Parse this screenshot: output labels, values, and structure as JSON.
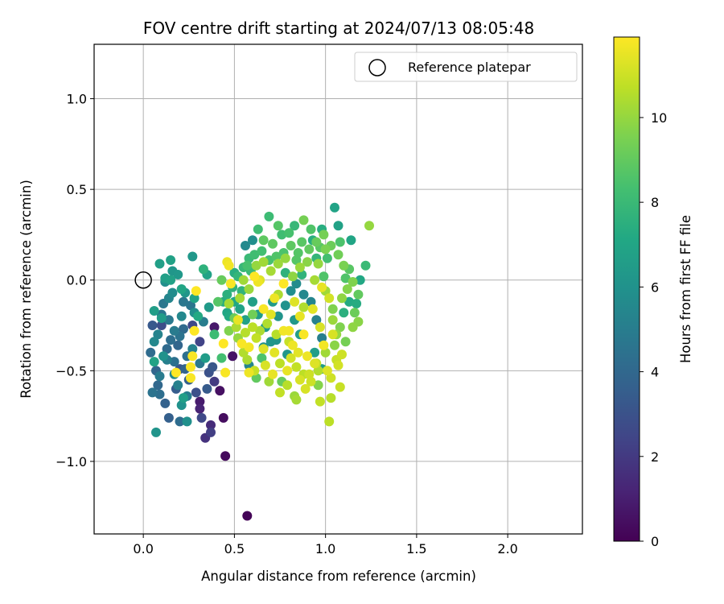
{
  "chart_data": {
    "type": "scatter",
    "title": "FOV centre drift starting at 2024/07/13 08:05:48",
    "xlabel": "Angular distance from reference (arcmin)",
    "ylabel": "Rotation from reference (arcmin)",
    "xlim": [
      -0.27,
      2.41
    ],
    "ylim": [
      -1.4,
      1.3
    ],
    "xticks": [
      0.0,
      0.5,
      1.0,
      1.5,
      2.0
    ],
    "yticks": [
      -1.0,
      -0.5,
      0.0,
      0.5,
      1.0
    ],
    "xtick_labels": [
      "0.0",
      "0.5",
      "1.0",
      "1.5",
      "2.0"
    ],
    "ytick_labels": [
      "−1.0",
      "−0.5",
      "0.0",
      "0.5",
      "1.0"
    ],
    "grid": true,
    "legend": {
      "position": "top-right",
      "entries": [
        {
          "label": "Reference platepar",
          "marker": "open-circle"
        }
      ]
    },
    "reference_point": {
      "x": 0.0,
      "y": 0.0
    },
    "colorbar": {
      "label": "Hours from first FF file",
      "colormap": "viridis",
      "range": [
        0,
        11.9
      ],
      "ticks": [
        0,
        2,
        4,
        6,
        8,
        10
      ],
      "tick_labels": [
        "0",
        "2",
        "4",
        "6",
        "8",
        "10"
      ]
    },
    "points_columns": [
      "x",
      "y",
      "hours"
    ],
    "points": [
      [
        0.57,
        -1.3,
        0.1
      ],
      [
        0.45,
        -0.97,
        0.3
      ],
      [
        0.44,
        -0.76,
        0.4
      ],
      [
        0.42,
        -0.61,
        0.5
      ],
      [
        0.49,
        -0.42,
        0.6
      ],
      [
        0.39,
        -0.26,
        0.8
      ],
      [
        0.31,
        -0.67,
        0.9
      ],
      [
        0.31,
        -0.71,
        1.2
      ],
      [
        0.37,
        -0.8,
        1.5
      ],
      [
        0.34,
        -0.87,
        1.7
      ],
      [
        0.39,
        -0.56,
        2.0
      ],
      [
        0.37,
        -0.84,
        2.2
      ],
      [
        0.31,
        -0.34,
        2.4
      ],
      [
        0.27,
        -0.25,
        2.6
      ],
      [
        0.1,
        -0.25,
        2.8
      ],
      [
        0.36,
        -0.51,
        3.0
      ],
      [
        0.2,
        -0.49,
        3.1
      ],
      [
        0.05,
        -0.25,
        3.3
      ],
      [
        0.18,
        -0.6,
        3.5
      ],
      [
        0.14,
        -0.76,
        3.6
      ],
      [
        0.23,
        -0.49,
        3.8
      ],
      [
        0.07,
        -0.5,
        3.9
      ],
      [
        0.13,
        -0.38,
        4.1
      ],
      [
        0.2,
        -0.78,
        4.2
      ],
      [
        0.09,
        -0.63,
        4.3
      ],
      [
        0.17,
        -0.45,
        4.4
      ],
      [
        0.05,
        -0.62,
        4.5
      ],
      [
        0.2,
        -0.31,
        4.5
      ],
      [
        0.1,
        -0.19,
        4.6
      ],
      [
        0.22,
        -0.12,
        4.7
      ],
      [
        0.14,
        -0.22,
        4.8
      ],
      [
        0.09,
        -0.53,
        4.9
      ],
      [
        0.17,
        -0.28,
        4.9
      ],
      [
        0.24,
        -0.64,
        5.0
      ],
      [
        0.13,
        -0.44,
        5.1
      ],
      [
        0.19,
        -0.58,
        5.2
      ],
      [
        0.08,
        -0.3,
        5.3
      ],
      [
        0.27,
        -0.38,
        5.3
      ],
      [
        0.14,
        -0.1,
        5.4
      ],
      [
        0.21,
        -0.2,
        5.5
      ],
      [
        0.06,
        -0.34,
        5.5
      ],
      [
        0.17,
        -0.52,
        5.6
      ],
      [
        0.16,
        -0.07,
        5.7
      ],
      [
        0.28,
        -0.18,
        5.8
      ],
      [
        0.12,
        -0.01,
        5.8
      ],
      [
        0.24,
        -0.78,
        5.9
      ],
      [
        0.21,
        -0.69,
        6.0
      ],
      [
        0.11,
        -0.42,
        6.0
      ],
      [
        0.07,
        -0.84,
        6.1
      ],
      [
        0.23,
        -0.07,
        6.2
      ],
      [
        0.16,
        0.05,
        6.2
      ],
      [
        0.19,
        0.03,
        6.3
      ],
      [
        0.27,
        0.13,
        6.3
      ],
      [
        0.36,
        -0.15,
        6.4
      ],
      [
        0.34,
        -0.43,
        6.5
      ],
      [
        0.1,
        -0.21,
        6.5
      ],
      [
        0.06,
        -0.17,
        6.6
      ],
      [
        0.22,
        -0.65,
        6.6
      ],
      [
        0.12,
        0.01,
        6.7
      ],
      [
        0.09,
        0.09,
        6.7
      ],
      [
        0.15,
        0.11,
        6.8
      ],
      [
        0.15,
        0.0,
        6.8
      ],
      [
        0.06,
        -0.45,
        6.9
      ],
      [
        0.35,
        0.03,
        6.9
      ],
      [
        0.21,
        -0.05,
        7.0
      ],
      [
        0.58,
        -0.47,
        5.4
      ],
      [
        0.56,
        0.19,
        5.6
      ],
      [
        0.6,
        0.22,
        5.8
      ],
      [
        0.66,
        -0.37,
        5.9
      ],
      [
        0.73,
        -0.33,
        6.1
      ],
      [
        0.79,
        -0.41,
        6.2
      ],
      [
        0.83,
        -0.22,
        6.3
      ],
      [
        0.71,
        -0.12,
        6.4
      ],
      [
        0.98,
        -0.49,
        6.5
      ],
      [
        0.94,
        -0.4,
        6.6
      ],
      [
        0.86,
        -0.3,
        6.7
      ],
      [
        1.07,
        0.3,
        6.8
      ],
      [
        1.05,
        0.4,
        6.9
      ],
      [
        1.14,
        0.22,
        7.0
      ],
      [
        1.19,
        0.0,
        7.1
      ],
      [
        1.13,
        -0.12,
        7.2
      ],
      [
        1.17,
        -0.13,
        7.3
      ],
      [
        0.93,
        0.22,
        7.4
      ],
      [
        0.98,
        0.28,
        7.4
      ],
      [
        1.1,
        -0.18,
        7.5
      ],
      [
        0.78,
        0.04,
        7.6
      ],
      [
        0.87,
        0.03,
        7.7
      ],
      [
        0.95,
        0.12,
        7.8
      ],
      [
        0.83,
        0.3,
        7.9
      ],
      [
        1.22,
        0.08,
        8.0
      ],
      [
        0.69,
        0.35,
        8.1
      ],
      [
        0.76,
        0.25,
        8.2
      ],
      [
        0.43,
        -0.43,
        8.3
      ],
      [
        0.57,
        0.08,
        8.4
      ],
      [
        0.65,
        -0.43,
        8.5
      ],
      [
        1.11,
        0.01,
        8.6
      ],
      [
        0.99,
        0.02,
        8.6
      ],
      [
        0.84,
        0.11,
        8.7
      ],
      [
        0.97,
        0.18,
        8.8
      ],
      [
        0.71,
        0.2,
        8.9
      ],
      [
        0.62,
        -0.54,
        9.0
      ],
      [
        0.76,
        -0.56,
        9.1
      ],
      [
        0.5,
        -0.21,
        9.2
      ],
      [
        0.6,
        -0.19,
        9.3
      ],
      [
        0.88,
        0.33,
        9.4
      ],
      [
        1.0,
        0.17,
        9.5
      ],
      [
        1.04,
        -0.16,
        9.6
      ],
      [
        0.96,
        -0.58,
        9.7
      ],
      [
        1.18,
        -0.23,
        9.8
      ],
      [
        1.15,
        -0.26,
        9.9
      ],
      [
        1.24,
        0.3,
        10.0
      ],
      [
        0.83,
        -0.64,
        10.1
      ],
      [
        0.69,
        -0.56,
        10.2
      ],
      [
        0.47,
        -0.13,
        10.3
      ],
      [
        0.74,
        -0.08,
        10.4
      ],
      [
        0.88,
        -0.15,
        10.5
      ],
      [
        1.03,
        -0.65,
        10.6
      ],
      [
        1.02,
        -0.78,
        10.7
      ],
      [
        0.97,
        -0.67,
        10.8
      ],
      [
        1.08,
        -0.59,
        10.9
      ],
      [
        1.09,
        -0.41,
        11.0
      ],
      [
        0.81,
        -0.43,
        11.1
      ],
      [
        0.86,
        -0.55,
        11.2
      ],
      [
        0.64,
        0.0,
        11.3
      ],
      [
        0.72,
        -0.4,
        11.4
      ],
      [
        0.46,
        0.1,
        11.6
      ],
      [
        0.77,
        -0.28,
        11.7
      ],
      [
        0.26,
        -0.54,
        11.8
      ],
      [
        0.29,
        -0.06,
        11.9
      ],
      [
        0.18,
        -0.51,
        11.9
      ],
      [
        0.27,
        -0.42,
        11.8
      ],
      [
        0.28,
        -0.28,
        11.9
      ],
      [
        0.44,
        -0.35,
        11.9
      ],
      [
        0.45,
        -0.51,
        11.8
      ],
      [
        0.26,
        -0.48,
        11.8
      ],
      [
        0.47,
        0.08,
        11.7
      ],
      [
        0.58,
        -0.51,
        11.6
      ],
      [
        0.48,
        -0.02,
        11.8
      ],
      [
        0.63,
        -0.01,
        11.6
      ],
      [
        0.61,
        0.02,
        11.9
      ],
      [
        0.54,
        -0.35,
        11.8
      ],
      [
        0.52,
        -0.22,
        11.5
      ],
      [
        0.58,
        -0.37,
        11.7
      ],
      [
        0.66,
        -0.16,
        11.8
      ],
      [
        0.72,
        -0.1,
        11.6
      ],
      [
        0.7,
        -0.19,
        11.4
      ],
      [
        0.66,
        -0.38,
        11.3
      ],
      [
        0.77,
        -0.02,
        11.9
      ],
      [
        0.8,
        -0.28,
        11.7
      ],
      [
        0.79,
        -0.5,
        11.5
      ],
      [
        0.82,
        -0.36,
        11.6
      ],
      [
        0.85,
        -0.4,
        11.4
      ],
      [
        0.83,
        -0.12,
        11.3
      ],
      [
        0.86,
        -0.2,
        11.5
      ],
      [
        0.88,
        -0.3,
        11.8
      ],
      [
        0.9,
        -0.42,
        11.6
      ],
      [
        0.93,
        -0.16,
        11.4
      ],
      [
        0.94,
        -0.46,
        11.3
      ],
      [
        0.97,
        -0.26,
        11.2
      ],
      [
        0.98,
        -0.04,
        11.5
      ],
      [
        0.99,
        -0.36,
        11.7
      ],
      [
        1.01,
        -0.5,
        11.3
      ],
      [
        1.02,
        -0.1,
        11.1
      ],
      [
        1.03,
        -0.54,
        11.0
      ],
      [
        1.04,
        -0.3,
        11.2
      ],
      [
        1.06,
        -0.44,
        10.9
      ],
      [
        1.07,
        -0.47,
        11.1
      ],
      [
        0.91,
        -0.52,
        11.0
      ],
      [
        0.89,
        -0.6,
        11.2
      ],
      [
        0.95,
        -0.46,
        10.8
      ],
      [
        0.84,
        -0.48,
        10.8
      ],
      [
        0.8,
        -0.34,
        10.9
      ],
      [
        0.75,
        -0.46,
        10.7
      ],
      [
        0.73,
        -0.3,
        10.6
      ],
      [
        0.68,
        -0.24,
        10.5
      ],
      [
        0.64,
        -0.28,
        10.4
      ],
      [
        0.62,
        -0.32,
        10.8
      ],
      [
        0.6,
        -0.26,
        10.7
      ],
      [
        0.56,
        -0.29,
        10.6
      ],
      [
        0.55,
        -0.4,
        10.5
      ],
      [
        0.51,
        -0.26,
        10.4
      ],
      [
        0.53,
        -0.1,
        10.3
      ],
      [
        0.55,
        0.0,
        10.2
      ],
      [
        0.58,
        -0.05,
        10.1
      ],
      [
        0.62,
        0.08,
        10.0
      ],
      [
        0.66,
        0.1,
        10.2
      ],
      [
        0.7,
        0.05,
        10.3
      ],
      [
        0.74,
        0.09,
        10.1
      ],
      [
        0.78,
        0.12,
        10.0
      ],
      [
        0.82,
        0.02,
        9.9
      ],
      [
        0.86,
        0.07,
        10.1
      ],
      [
        0.9,
        0.1,
        9.8
      ],
      [
        0.94,
        0.0,
        10.3
      ],
      [
        0.96,
        0.09,
        10.0
      ],
      [
        1.0,
        -0.06,
        10.2
      ],
      [
        1.04,
        -0.22,
        10.1
      ],
      [
        1.06,
        -0.3,
        10.0
      ],
      [
        1.09,
        -0.1,
        9.9
      ],
      [
        1.12,
        -0.05,
        9.7
      ],
      [
        1.15,
        -0.01,
        9.6
      ],
      [
        1.1,
        0.08,
        9.5
      ],
      [
        1.07,
        0.14,
        9.3
      ],
      [
        1.03,
        0.19,
        9.2
      ],
      [
        0.99,
        0.25,
        9.4
      ],
      [
        0.95,
        0.21,
        9.1
      ],
      [
        0.91,
        0.17,
        9.0
      ],
      [
        0.87,
        0.21,
        8.8
      ],
      [
        0.85,
        0.15,
        8.7
      ],
      [
        0.81,
        0.19,
        8.9
      ],
      [
        0.77,
        0.15,
        8.5
      ],
      [
        0.73,
        0.13,
        8.6
      ],
      [
        0.69,
        0.11,
        8.4
      ],
      [
        0.65,
        0.16,
        8.3
      ],
      [
        0.61,
        0.14,
        8.2
      ],
      [
        0.59,
        0.05,
        8.0
      ],
      [
        0.55,
        0.07,
        7.9
      ],
      [
        0.52,
        0.02,
        7.8
      ],
      [
        0.49,
        -0.04,
        7.6
      ],
      [
        0.46,
        -0.08,
        7.5
      ],
      [
        0.44,
        -0.12,
        7.3
      ],
      [
        0.47,
        -0.2,
        7.2
      ],
      [
        0.5,
        -0.12,
        7.1
      ],
      [
        0.53,
        -0.16,
        6.9
      ],
      [
        0.56,
        -0.22,
        6.8
      ],
      [
        0.6,
        -0.12,
        6.7
      ],
      [
        0.63,
        -0.19,
        6.5
      ],
      [
        0.67,
        -0.26,
        6.4
      ],
      [
        0.7,
        -0.34,
        6.2
      ],
      [
        0.74,
        -0.2,
        6.1
      ],
      [
        0.78,
        -0.14,
        6.0
      ],
      [
        0.81,
        -0.06,
        5.8
      ],
      [
        0.84,
        -0.02,
        5.7
      ],
      [
        0.88,
        -0.08,
        5.5
      ],
      [
        0.92,
        -0.12,
        5.4
      ],
      [
        0.95,
        -0.22,
        5.2
      ],
      [
        0.98,
        -0.32,
        5.1
      ],
      [
        0.24,
        -0.42,
        4.4
      ],
      [
        0.26,
        -0.14,
        4.6
      ],
      [
        0.31,
        -0.46,
        4.8
      ],
      [
        0.33,
        -0.23,
        5.0
      ],
      [
        0.35,
        -0.6,
        3.4
      ],
      [
        0.38,
        -0.48,
        3.2
      ],
      [
        0.29,
        -0.62,
        2.9
      ],
      [
        0.32,
        -0.76,
        2.6
      ],
      [
        0.12,
        -0.68,
        3.7
      ],
      [
        0.08,
        -0.58,
        4.0
      ],
      [
        0.04,
        -0.4,
        4.2
      ],
      [
        0.11,
        -0.13,
        4.7
      ],
      [
        0.19,
        -0.36,
        3.9
      ],
      [
        0.22,
        -0.27,
        4.1
      ],
      [
        0.25,
        -0.55,
        3.6
      ],
      [
        0.15,
        -0.33,
        4.3
      ],
      [
        0.28,
        -0.1,
        6.9
      ],
      [
        0.3,
        -0.2,
        7.2
      ],
      [
        0.33,
        0.06,
        7.6
      ],
      [
        0.39,
        -0.3,
        8.1
      ],
      [
        0.41,
        -0.12,
        8.7
      ],
      [
        0.43,
        0.0,
        9.1
      ],
      [
        0.47,
        -0.28,
        9.6
      ],
      [
        0.52,
        -0.32,
        10.0
      ],
      [
        0.57,
        -0.44,
        10.4
      ],
      [
        0.61,
        -0.5,
        10.9
      ],
      [
        0.67,
        -0.47,
        11.2
      ],
      [
        0.71,
        -0.52,
        11.5
      ],
      [
        0.75,
        -0.62,
        10.8
      ],
      [
        0.79,
        -0.58,
        10.6
      ],
      [
        0.84,
        -0.66,
        10.3
      ],
      [
        0.88,
        -0.52,
        10.7
      ],
      [
        0.92,
        -0.56,
        11.0
      ],
      [
        0.96,
        -0.5,
        10.5
      ],
      [
        1.0,
        -0.4,
        10.2
      ],
      [
        1.05,
        -0.36,
        9.8
      ],
      [
        1.08,
        -0.26,
        9.6
      ],
      [
        1.11,
        -0.34,
        9.4
      ],
      [
        1.16,
        -0.18,
        9.2
      ],
      [
        1.18,
        -0.08,
        9.0
      ],
      [
        1.13,
        0.06,
        8.8
      ],
      [
        1.08,
        0.21,
        8.5
      ],
      [
        1.01,
        0.12,
        8.3
      ],
      [
        0.92,
        0.28,
        8.6
      ],
      [
        0.8,
        0.26,
        8.4
      ],
      [
        0.74,
        0.3,
        8.7
      ],
      [
        0.66,
        0.22,
        8.9
      ],
      [
        0.63,
        0.28,
        8.2
      ],
      [
        0.58,
        0.12,
        8.0
      ],
      [
        0.54,
        -0.06,
        7.7
      ],
      [
        0.5,
        0.04,
        7.4
      ],
      [
        0.46,
        -0.18,
        7.0
      ]
    ]
  }
}
